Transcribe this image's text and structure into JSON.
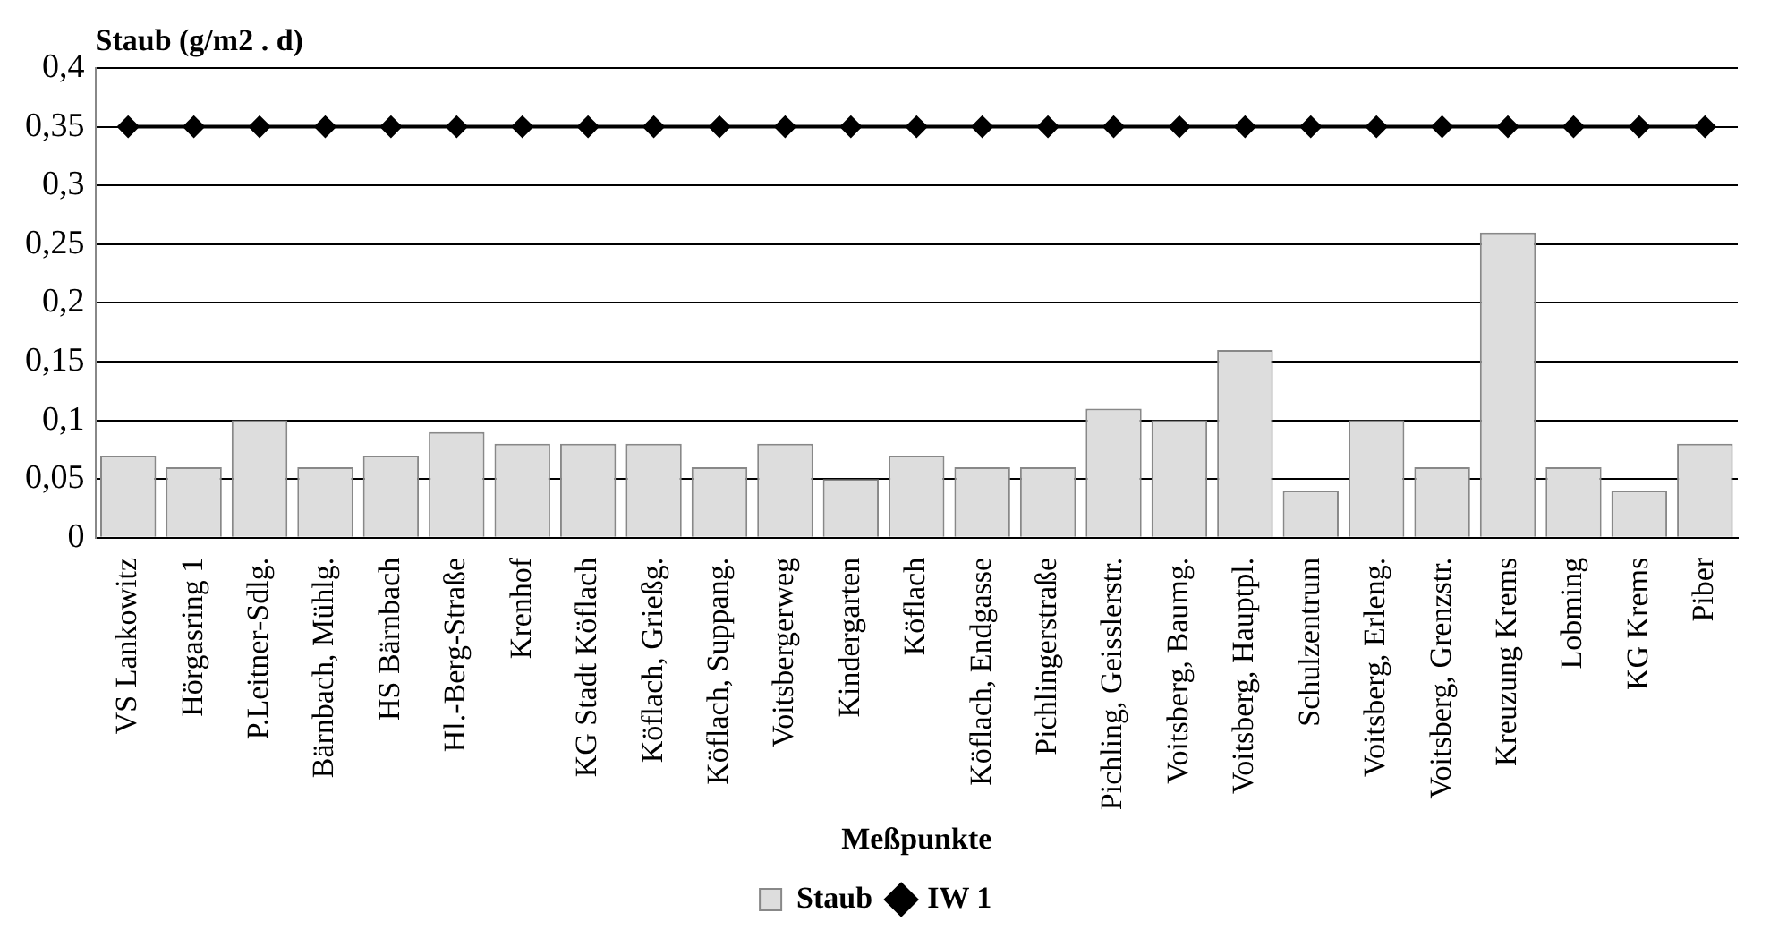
{
  "chart_data": {
    "type": "bar",
    "ylabel": "Staub (g/m2 . d)",
    "xlabel": "Meßpunkte",
    "categories": [
      "VS Lankowitz",
      "Hörgasring 1",
      "P.Leitner-Sdlg.",
      "Bärnbach, Mühlg.",
      "HS Bärnbach",
      "Hl.-Berg-Straße",
      "Krenhof",
      "KG Stadt Köflach",
      "Köflach, Grießg.",
      "Köflach, Suppang.",
      "Voitsbergerweg",
      "Kindergarten",
      "Köflach",
      "Köflach, Endgasse",
      "Pichlingerstraße",
      "Pichling, Geisslerstr.",
      "Voitsberg, Baumg.",
      "Voitsberg, Hauptpl.",
      "Schulzentrum",
      "Voitsberg, Erleng.",
      "Voitsberg, Grenzstr.",
      "Kreuzung Krems",
      "Lobming",
      "KG Krems",
      "Piber"
    ],
    "series": [
      {
        "name": "Staub",
        "color": "#dddddd",
        "values": [
          0.07,
          0.06,
          0.1,
          0.06,
          0.07,
          0.09,
          0.08,
          0.08,
          0.08,
          0.06,
          0.08,
          0.05,
          0.07,
          0.06,
          0.06,
          0.11,
          0.1,
          0.16,
          0.04,
          0.1,
          0.06,
          0.26,
          0.06,
          0.04,
          0.08
        ]
      },
      {
        "name": "IW 1",
        "type": "line",
        "color": "#000000",
        "marker": "diamond",
        "values": [
          0.35,
          0.35,
          0.35,
          0.35,
          0.35,
          0.35,
          0.35,
          0.35,
          0.35,
          0.35,
          0.35,
          0.35,
          0.35,
          0.35,
          0.35,
          0.35,
          0.35,
          0.35,
          0.35,
          0.35,
          0.35,
          0.35,
          0.35,
          0.35,
          0.35
        ]
      }
    ],
    "ylim": [
      0,
      0.4
    ],
    "yticks": [
      0,
      {
        "value": 0.05,
        "label": "0,05"
      },
      {
        "value": 0.1,
        "label": "0,1"
      },
      {
        "value": 0.15,
        "label": "0,15"
      },
      {
        "value": 0.2,
        "label": "0,2"
      },
      {
        "value": 0.25,
        "label": "0,25"
      },
      {
        "value": 0.3,
        "label": "0,3"
      },
      {
        "value": 0.35,
        "label": "0,35"
      },
      {
        "value": 0.4,
        "label": "0,4"
      }
    ],
    "grid": "y",
    "legend": "bottom"
  }
}
